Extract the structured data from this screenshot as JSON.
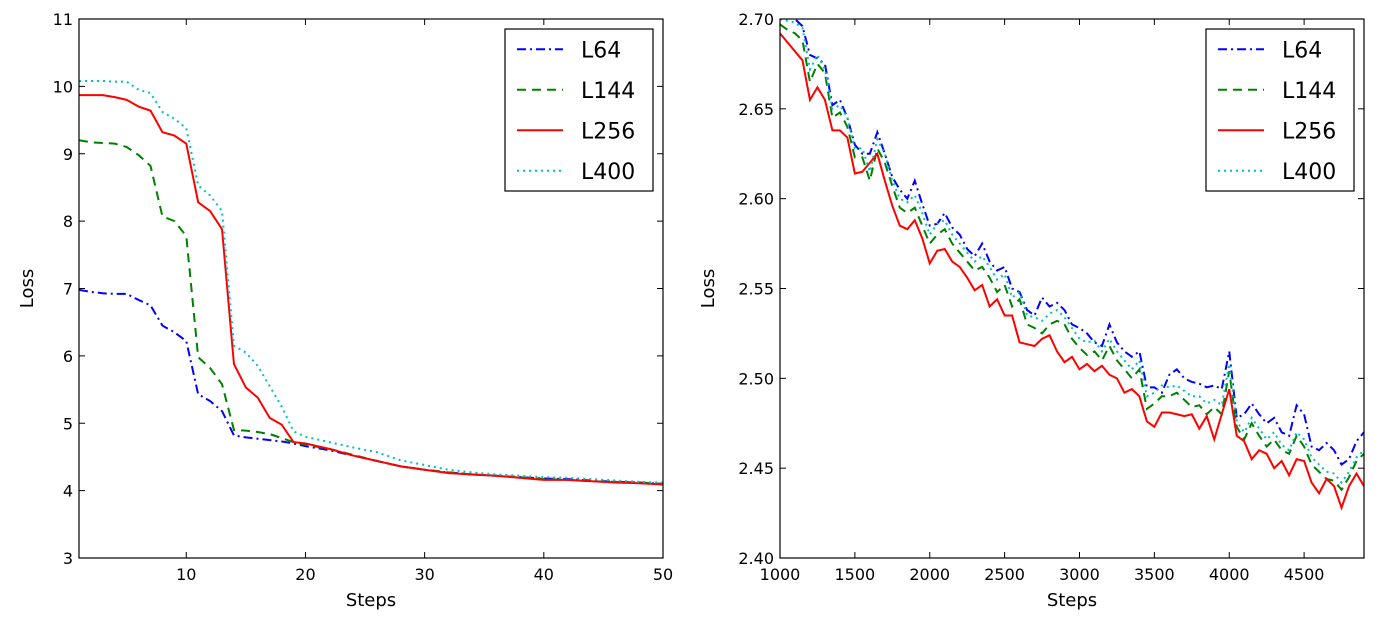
{
  "chart_data": [
    {
      "type": "line",
      "title": "",
      "xlabel": "Steps",
      "ylabel": "Loss",
      "xlim": [
        1,
        50
      ],
      "ylim": [
        3,
        11
      ],
      "xticks": [
        10,
        20,
        30,
        40,
        50
      ],
      "yticks": [
        3,
        4,
        5,
        6,
        7,
        8,
        9,
        10,
        11
      ],
      "grid": false,
      "legend": "top-right",
      "series": [
        {
          "name": "L64",
          "color": "#0000ff",
          "dash": "dashdot",
          "x": [
            1,
            2,
            3,
            4,
            5,
            6,
            7,
            8,
            9,
            10,
            11,
            12,
            13,
            14,
            15,
            16,
            17,
            18,
            19,
            20,
            22,
            24,
            26,
            28,
            30,
            32,
            34,
            36,
            38,
            40,
            42,
            44,
            46,
            48,
            50
          ],
          "y": [
            6.98,
            6.95,
            6.93,
            6.92,
            6.92,
            6.83,
            6.75,
            6.45,
            6.35,
            6.22,
            5.43,
            5.33,
            5.18,
            4.82,
            4.79,
            4.77,
            4.75,
            4.73,
            4.7,
            4.66,
            4.6,
            4.52,
            4.44,
            4.36,
            4.31,
            4.27,
            4.24,
            4.22,
            4.2,
            4.18,
            4.17,
            4.15,
            4.13,
            4.12,
            4.1
          ]
        },
        {
          "name": "L144",
          "color": "#008000",
          "dash": "dashed",
          "x": [
            1,
            2,
            3,
            4,
            5,
            6,
            7,
            8,
            9,
            10,
            11,
            12,
            13,
            14,
            15,
            16,
            17,
            18,
            19,
            20,
            22,
            24,
            26,
            28,
            30,
            32,
            34,
            36,
            38,
            40,
            42,
            44,
            46,
            48,
            50
          ],
          "y": [
            9.2,
            9.17,
            9.16,
            9.15,
            9.1,
            8.98,
            8.82,
            8.07,
            8.0,
            7.78,
            5.98,
            5.82,
            5.58,
            4.9,
            4.89,
            4.87,
            4.84,
            4.78,
            4.72,
            4.68,
            4.62,
            4.53,
            4.44,
            4.36,
            4.31,
            4.27,
            4.24,
            4.22,
            4.2,
            4.17,
            4.16,
            4.14,
            4.13,
            4.12,
            4.1
          ]
        },
        {
          "name": "L256",
          "color": "#ff0000",
          "dash": "solid",
          "x": [
            1,
            2,
            3,
            4,
            5,
            6,
            7,
            8,
            9,
            10,
            11,
            12,
            13,
            14,
            15,
            16,
            17,
            18,
            19,
            20,
            22,
            24,
            26,
            28,
            30,
            32,
            34,
            36,
            38,
            40,
            42,
            44,
            46,
            48,
            50
          ],
          "y": [
            9.87,
            9.87,
            9.87,
            9.84,
            9.8,
            9.7,
            9.64,
            9.32,
            9.27,
            9.15,
            8.28,
            8.15,
            7.88,
            5.88,
            5.53,
            5.38,
            5.08,
            4.98,
            4.72,
            4.7,
            4.62,
            4.52,
            4.44,
            4.36,
            4.31,
            4.26,
            4.24,
            4.22,
            4.19,
            4.16,
            4.16,
            4.14,
            4.12,
            4.11,
            4.09
          ]
        },
        {
          "name": "L400",
          "color": "#00bfbf",
          "dash": "dotted",
          "x": [
            1,
            2,
            3,
            4,
            5,
            6,
            7,
            8,
            9,
            10,
            11,
            12,
            13,
            14,
            15,
            16,
            17,
            18,
            19,
            20,
            22,
            24,
            26,
            28,
            30,
            32,
            34,
            36,
            38,
            40,
            42,
            44,
            46,
            48,
            50
          ],
          "y": [
            10.08,
            10.08,
            10.08,
            10.07,
            10.07,
            9.95,
            9.9,
            9.62,
            9.52,
            9.38,
            8.53,
            8.38,
            8.15,
            6.15,
            6.05,
            5.85,
            5.55,
            5.25,
            4.88,
            4.8,
            4.72,
            4.64,
            4.57,
            4.45,
            4.38,
            4.31,
            4.27,
            4.24,
            4.22,
            4.2,
            4.19,
            4.17,
            4.15,
            4.13,
            4.12
          ]
        }
      ]
    },
    {
      "type": "line",
      "title": "",
      "xlabel": "Steps",
      "ylabel": "Loss",
      "xlim": [
        1000,
        4900
      ],
      "ylim": [
        2.4,
        2.7
      ],
      "xticks": [
        1000,
        1500,
        2000,
        2500,
        3000,
        3500,
        4000,
        4500
      ],
      "yticks": [
        2.4,
        2.45,
        2.5,
        2.55,
        2.6,
        2.65,
        2.7
      ],
      "ytick_labels": [
        "2.40",
        "2.45",
        "2.50",
        "2.55",
        "2.60",
        "2.65",
        "2.70"
      ],
      "grid": false,
      "legend": "top-right",
      "series": [
        {
          "name": "L64",
          "color": "#0000ff",
          "dash": "dashdot",
          "x": [
            1000,
            1050,
            1100,
            1150,
            1200,
            1250,
            1300,
            1350,
            1400,
            1450,
            1500,
            1550,
            1600,
            1650,
            1700,
            1750,
            1800,
            1850,
            1900,
            1950,
            2000,
            2050,
            2100,
            2150,
            2200,
            2250,
            2300,
            2350,
            2400,
            2450,
            2500,
            2550,
            2600,
            2650,
            2700,
            2750,
            2800,
            2850,
            2900,
            2950,
            3000,
            3050,
            3100,
            3150,
            3200,
            3250,
            3300,
            3350,
            3400,
            3450,
            3500,
            3550,
            3600,
            3650,
            3700,
            3750,
            3800,
            3850,
            3900,
            3950,
            4000,
            4050,
            4100,
            4150,
            4200,
            4250,
            4300,
            4350,
            4400,
            4450,
            4500,
            4550,
            4600,
            4650,
            4700,
            4750,
            4800,
            4850,
            4900
          ],
          "y": [
            2.705,
            2.702,
            2.7,
            2.696,
            2.68,
            2.678,
            2.675,
            2.652,
            2.655,
            2.645,
            2.63,
            2.625,
            2.625,
            2.637,
            2.625,
            2.612,
            2.605,
            2.6,
            2.61,
            2.597,
            2.585,
            2.586,
            2.592,
            2.584,
            2.58,
            2.572,
            2.568,
            2.575,
            2.565,
            2.56,
            2.562,
            2.55,
            2.548,
            2.538,
            2.535,
            2.545,
            2.54,
            2.542,
            2.538,
            2.53,
            2.528,
            2.525,
            2.52,
            2.518,
            2.53,
            2.52,
            2.515,
            2.512,
            2.515,
            2.495,
            2.495,
            2.492,
            2.502,
            2.505,
            2.5,
            2.498,
            2.497,
            2.495,
            2.496,
            2.494,
            2.515,
            2.478,
            2.48,
            2.486,
            2.48,
            2.475,
            2.478,
            2.47,
            2.468,
            2.485,
            2.48,
            2.462,
            2.46,
            2.464,
            2.46,
            2.452,
            2.455,
            2.465,
            2.47
          ]
        },
        {
          "name": "L144",
          "color": "#008000",
          "dash": "dashed",
          "x": [
            1000,
            1050,
            1100,
            1150,
            1200,
            1250,
            1300,
            1350,
            1400,
            1450,
            1500,
            1550,
            1600,
            1650,
            1700,
            1750,
            1800,
            1850,
            1900,
            1950,
            2000,
            2050,
            2100,
            2150,
            2200,
            2250,
            2300,
            2350,
            2400,
            2450,
            2500,
            2550,
            2600,
            2650,
            2700,
            2750,
            2800,
            2850,
            2900,
            2950,
            3000,
            3050,
            3100,
            3150,
            3200,
            3250,
            3300,
            3350,
            3400,
            3450,
            3500,
            3550,
            3600,
            3650,
            3700,
            3750,
            3800,
            3850,
            3900,
            3950,
            4000,
            4050,
            4100,
            4150,
            4200,
            4250,
            4300,
            4350,
            4400,
            4450,
            4500,
            4550,
            4600,
            4650,
            4700,
            4750,
            4800,
            4850,
            4900
          ],
          "y": [
            2.697,
            2.694,
            2.692,
            2.688,
            2.665,
            2.675,
            2.67,
            2.645,
            2.648,
            2.64,
            2.623,
            2.623,
            2.61,
            2.628,
            2.62,
            2.607,
            2.595,
            2.592,
            2.595,
            2.585,
            2.575,
            2.58,
            2.583,
            2.575,
            2.57,
            2.565,
            2.56,
            2.562,
            2.556,
            2.548,
            2.552,
            2.54,
            2.544,
            2.53,
            2.528,
            2.525,
            2.53,
            2.532,
            2.53,
            2.522,
            2.517,
            2.513,
            2.515,
            2.51,
            2.518,
            2.51,
            2.505,
            2.5,
            2.505,
            2.483,
            2.486,
            2.49,
            2.49,
            2.492,
            2.488,
            2.484,
            2.485,
            2.48,
            2.484,
            2.48,
            2.504,
            2.473,
            2.466,
            2.475,
            2.468,
            2.462,
            2.466,
            2.46,
            2.458,
            2.468,
            2.462,
            2.452,
            2.448,
            2.444,
            2.443,
            2.438,
            2.445,
            2.454,
            2.458
          ]
        },
        {
          "name": "L256",
          "color": "#ff0000",
          "dash": "solid",
          "x": [
            1000,
            1050,
            1100,
            1150,
            1200,
            1250,
            1300,
            1350,
            1400,
            1450,
            1500,
            1550,
            1600,
            1650,
            1700,
            1750,
            1800,
            1850,
            1900,
            1950,
            2000,
            2050,
            2100,
            2150,
            2200,
            2250,
            2300,
            2350,
            2400,
            2450,
            2500,
            2550,
            2600,
            2650,
            2700,
            2750,
            2800,
            2850,
            2900,
            2950,
            3000,
            3050,
            3100,
            3150,
            3200,
            3250,
            3300,
            3350,
            3400,
            3450,
            3500,
            3550,
            3600,
            3650,
            3700,
            3750,
            3800,
            3850,
            3900,
            3950,
            4000,
            4050,
            4100,
            4150,
            4200,
            4250,
            4300,
            4350,
            4400,
            4450,
            4500,
            4550,
            4600,
            4650,
            4700,
            4750,
            4800,
            4850,
            4900
          ],
          "y": [
            2.692,
            2.687,
            2.682,
            2.677,
            2.655,
            2.662,
            2.655,
            2.638,
            2.638,
            2.634,
            2.614,
            2.615,
            2.62,
            2.625,
            2.61,
            2.596,
            2.585,
            2.583,
            2.588,
            2.578,
            2.564,
            2.571,
            2.572,
            2.565,
            2.562,
            2.556,
            2.549,
            2.552,
            2.54,
            2.544,
            2.535,
            2.535,
            2.52,
            2.519,
            2.518,
            2.522,
            2.524,
            2.515,
            2.509,
            2.512,
            2.505,
            2.508,
            2.504,
            2.507,
            2.502,
            2.5,
            2.492,
            2.494,
            2.49,
            2.476,
            2.473,
            2.481,
            2.481,
            2.48,
            2.479,
            2.48,
            2.472,
            2.479,
            2.466,
            2.48,
            2.494,
            2.468,
            2.465,
            2.455,
            2.46,
            2.458,
            2.45,
            2.454,
            2.446,
            2.455,
            2.454,
            2.442,
            2.436,
            2.444,
            2.44,
            2.428,
            2.44,
            2.447,
            2.44
          ]
        },
        {
          "name": "L400",
          "color": "#00bfbf",
          "dash": "dotted",
          "x": [
            1000,
            1050,
            1100,
            1150,
            1200,
            1250,
            1300,
            1350,
            1400,
            1450,
            1500,
            1550,
            1600,
            1650,
            1700,
            1750,
            1800,
            1850,
            1900,
            1950,
            2000,
            2050,
            2100,
            2150,
            2200,
            2250,
            2300,
            2350,
            2400,
            2450,
            2500,
            2550,
            2600,
            2650,
            2700,
            2750,
            2800,
            2850,
            2900,
            2950,
            3000,
            3050,
            3100,
            3150,
            3200,
            3250,
            3300,
            3350,
            3400,
            3450,
            3500,
            3550,
            3600,
            3650,
            3700,
            3750,
            3800,
            3850,
            3900,
            3950,
            4000,
            4050,
            4100,
            4150,
            4200,
            4250,
            4300,
            4350,
            4400,
            4450,
            4500,
            4550,
            4600,
            4650,
            4700,
            4750,
            4800,
            4850,
            4900
          ],
          "y": [
            2.7,
            2.699,
            2.698,
            2.695,
            2.672,
            2.68,
            2.672,
            2.65,
            2.652,
            2.645,
            2.628,
            2.628,
            2.615,
            2.633,
            2.625,
            2.61,
            2.6,
            2.598,
            2.602,
            2.592,
            2.58,
            2.586,
            2.588,
            2.58,
            2.575,
            2.57,
            2.565,
            2.568,
            2.562,
            2.555,
            2.558,
            2.545,
            2.548,
            2.535,
            2.534,
            2.532,
            2.536,
            2.538,
            2.534,
            2.528,
            2.522,
            2.52,
            2.521,
            2.515,
            2.522,
            2.515,
            2.51,
            2.505,
            2.51,
            2.49,
            2.492,
            2.496,
            2.495,
            2.496,
            2.493,
            2.49,
            2.49,
            2.486,
            2.488,
            2.485,
            2.508,
            2.476,
            2.47,
            2.478,
            2.472,
            2.466,
            2.47,
            2.463,
            2.46,
            2.47,
            2.466,
            2.456,
            2.452,
            2.448,
            2.447,
            2.442,
            2.448,
            2.456,
            2.46
          ]
        }
      ]
    }
  ]
}
